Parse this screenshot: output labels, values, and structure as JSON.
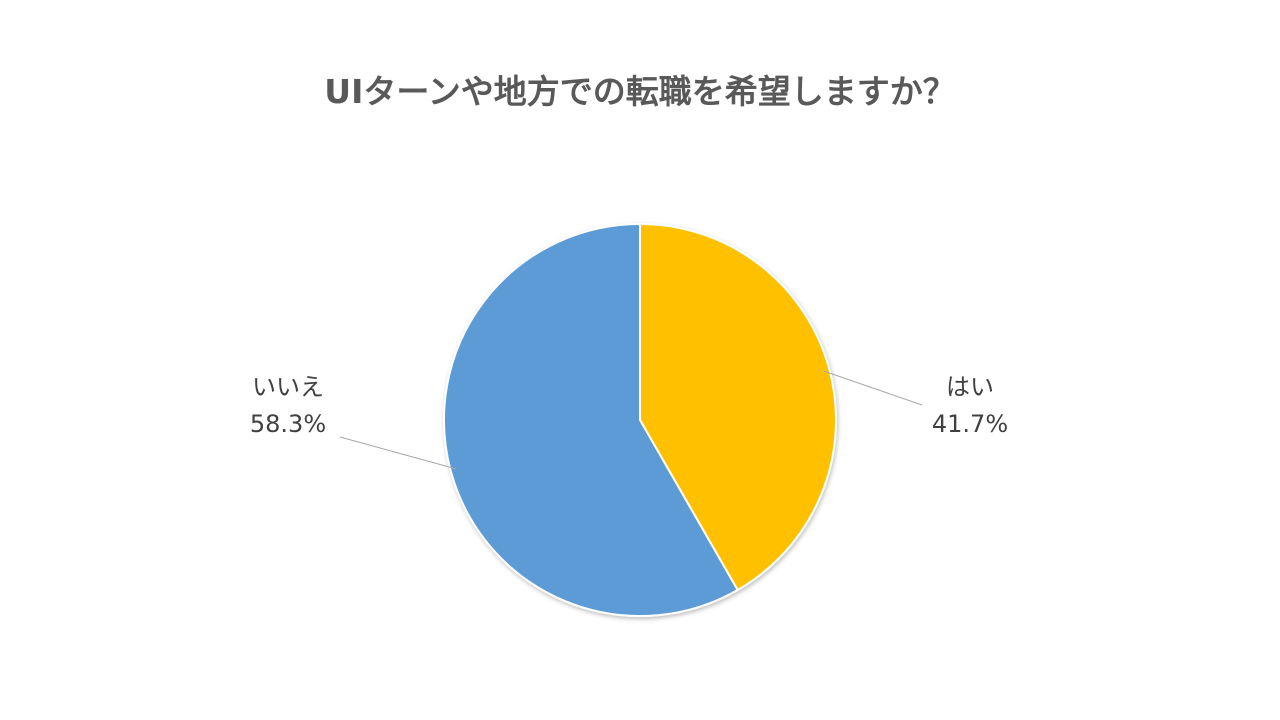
{
  "chart_data": {
    "type": "pie",
    "title": "UIターンや地方での転職を希望しますか？",
    "start_angle_deg": 0,
    "direction": "clockwise",
    "slices": [
      {
        "label": "はい",
        "value": 41.7,
        "value_label": "41.7%",
        "color": "#FFC000"
      },
      {
        "label": "いいえ",
        "value": 58.3,
        "value_label": "58.3%",
        "color": "#5B9BD5"
      }
    ],
    "legend": "none"
  }
}
